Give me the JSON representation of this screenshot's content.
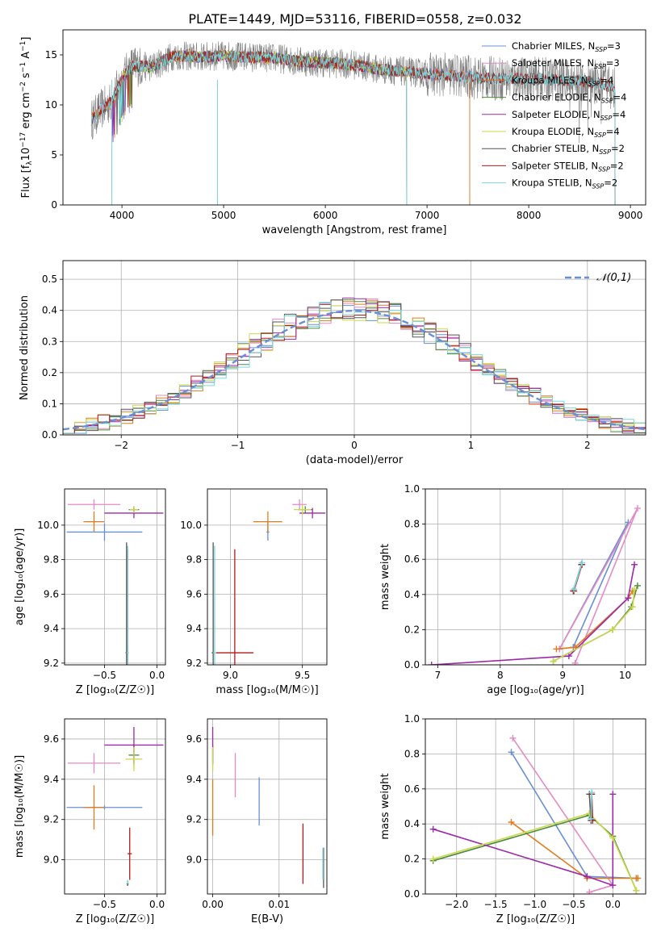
{
  "figure": {
    "title": "PLATE=1449, MJD=53116, FIBERID=0558, z=0.032"
  },
  "colors": {
    "chabrier_miles": "#6a8fd4",
    "salpeter_miles": "#e58ac5",
    "kroupa_miles": "#e07b1b",
    "chabrier_elodie": "#4e8a3e",
    "salpeter_elodie": "#9c2aa8",
    "kroupa_elodie": "#c9d84a",
    "chabrier_stelib": "#555555",
    "salpeter_stelib": "#b01c1c",
    "kroupa_stelib": "#7ad8de"
  },
  "chart_data": [
    {
      "id": "spectrum",
      "type": "line",
      "title": "PLATE=1449, MJD=53116, FIBERID=0558, z=0.032",
      "xlabel": "wavelength [Angstrom, rest frame]",
      "ylabel_parts": [
        "Flux [f",
        "λ",
        "10",
        "−17",
        " erg cm",
        "−2",
        " s",
        "−1",
        " A",
        "−1",
        "]"
      ],
      "xlim": [
        3420,
        9150
      ],
      "ylim": [
        0,
        17.5
      ],
      "xticks": [
        4000,
        5000,
        6000,
        7000,
        8000,
        9000
      ],
      "yticks": [
        0,
        5,
        10,
        15
      ],
      "observed_color": "#808080",
      "continuum_knots": [
        [
          3700,
          8.5
        ],
        [
          3800,
          9.6
        ],
        [
          3900,
          10.3
        ],
        [
          4000,
          12.6
        ],
        [
          4100,
          13.9
        ],
        [
          4300,
          13.8
        ],
        [
          4500,
          14.9
        ],
        [
          4800,
          14.8
        ],
        [
          5000,
          14.9
        ],
        [
          5200,
          14.8
        ],
        [
          5500,
          14.7
        ],
        [
          5800,
          14.3
        ],
        [
          6000,
          14.2
        ],
        [
          6300,
          14.0
        ],
        [
          6500,
          13.6
        ],
        [
          6800,
          13.3
        ],
        [
          7000,
          13.1
        ],
        [
          7300,
          12.9
        ],
        [
          7500,
          12.7
        ],
        [
          7800,
          12.6
        ],
        [
          8000,
          12.6
        ],
        [
          8300,
          12.5
        ],
        [
          8500,
          12.4
        ],
        [
          8700,
          12.2
        ],
        [
          8850,
          11.6
        ]
      ],
      "model_ranges": {
        "Chabrier MILES": [
          3700,
          7420
        ],
        "Salpeter MILES": [
          3700,
          7420
        ],
        "Kroupa MILES": [
          3700,
          7420
        ],
        "Chabrier ELODIE": [
          3900,
          6800
        ],
        "Salpeter ELODIE": [
          3900,
          6800
        ],
        "Kroupa ELODIE": [
          3900,
          6800
        ],
        "Chabrier STELIB": [
          3700,
          8850
        ],
        "Salpeter STELIB": [
          3700,
          8850
        ],
        "Kroupa STELIB": [
          3700,
          8850
        ]
      },
      "series": [
        {
          "name": "Chabrier MILES",
          "nssp": "3",
          "color": "#6a8fd4"
        },
        {
          "name": "Salpeter MILES",
          "nssp": "3",
          "color": "#e58ac5"
        },
        {
          "name": "Kroupa MILES",
          "nssp": "4",
          "color": "#e07b1b"
        },
        {
          "name": "Chabrier ELODIE",
          "nssp": "4",
          "color": "#4e8a3e"
        },
        {
          "name": "Salpeter ELODIE",
          "nssp": "4",
          "color": "#9c2aa8"
        },
        {
          "name": "Kroupa ELODIE",
          "nssp": "4",
          "color": "#c9d84a"
        },
        {
          "name": "Chabrier STELIB",
          "nssp": "2",
          "color": "#555555"
        },
        {
          "name": "Salpeter STELIB",
          "nssp": "2",
          "color": "#b01c1c"
        },
        {
          "name": "Kroupa STELIB",
          "nssp": "2",
          "color": "#7ad8de"
        }
      ],
      "legend_position": "top-right",
      "grid": false
    },
    {
      "id": "residuals",
      "type": "histogram",
      "xlabel": "(data-model)/error",
      "ylabel": "Normed distribution",
      "xlim": [
        -2.5,
        2.5
      ],
      "ylim": [
        0,
        0.56
      ],
      "xticks": [
        -2,
        -1,
        0,
        1,
        2
      ],
      "yticks": [
        0,
        0.1,
        0.2,
        0.3,
        0.4,
        0.5
      ],
      "bin_edges_range": [
        -2.5,
        2.5
      ],
      "bin_width": 0.1,
      "gaussian": {
        "label": "𝒩(0,1)",
        "color": "#6a8fd4",
        "mean": 0,
        "sigma": 1
      },
      "legend_position": "top-right",
      "grid": true,
      "series": [
        {
          "name": "Chabrier MILES",
          "color": "#6a8fd4",
          "offset": 0.01
        },
        {
          "name": "Salpeter MILES",
          "color": "#e58ac5",
          "offset": -0.02
        },
        {
          "name": "Kroupa MILES",
          "color": "#e07b1b",
          "offset": 0.0
        },
        {
          "name": "Chabrier ELODIE",
          "color": "#4e8a3e",
          "offset": 0.015
        },
        {
          "name": "Salpeter ELODIE",
          "color": "#9c2aa8",
          "offset": 0.03
        },
        {
          "name": "Kroupa ELODIE",
          "color": "#c9d84a",
          "offset": -0.01
        },
        {
          "name": "Chabrier STELIB",
          "color": "#555555",
          "offset": 0.005
        },
        {
          "name": "Salpeter STELIB",
          "color": "#b01c1c",
          "offset": -0.015
        },
        {
          "name": "Kroupa STELIB",
          "color": "#7ad8de",
          "offset": 0.02
        }
      ]
    },
    {
      "id": "age_vs_Z",
      "type": "errorbar",
      "xlabel": "Z [log₁₀(Z/Z☉)]",
      "ylabel": "age  [log₁₀(age/yr)]",
      "xlim": [
        -0.88,
        0.08
      ],
      "ylim": [
        9.19,
        10.21
      ],
      "xticks": [
        -0.5,
        0.0
      ],
      "yticks": [
        9.2,
        9.4,
        9.6,
        9.8,
        10.0
      ],
      "grid": true,
      "points": [
        {
          "color": "#6a8fd4",
          "x": -0.5,
          "y": 9.96,
          "xerr": 0.36,
          "yerr": 0.05
        },
        {
          "color": "#e58ac5",
          "x": -0.6,
          "y": 10.12,
          "xerr": 0.25,
          "yerr": 0.03
        },
        {
          "color": "#e07b1b",
          "x": -0.6,
          "y": 10.02,
          "xerr": 0.1,
          "yerr": 0.06
        },
        {
          "color": "#4e8a3e",
          "x": -0.22,
          "y": 10.09,
          "xerr": 0.05,
          "yerr": 0.02
        },
        {
          "color": "#9c2aa8",
          "x": -0.22,
          "y": 10.07,
          "xerr": 0.28,
          "yerr": 0.03
        },
        {
          "color": "#c9d84a",
          "x": -0.22,
          "y": 10.09,
          "xerr": 0.04,
          "yerr": 0.02
        },
        {
          "color": "#555555",
          "x": -0.29,
          "y": 9.26,
          "xerr": 0.01,
          "yerr": 0.64
        },
        {
          "color": "#b01c1c",
          "x": -0.28,
          "y": 9.26,
          "xerr": 0.01,
          "yerr": 0.6
        },
        {
          "color": "#7ad8de",
          "x": -0.28,
          "y": 9.26,
          "xerr": 0.01,
          "yerr": 0.62
        }
      ]
    },
    {
      "id": "age_vs_mass",
      "type": "errorbar",
      "xlabel": "mass [log₁₀(M/M☉)]",
      "ylabel": "",
      "xlim": [
        8.84,
        9.67
      ],
      "ylim": [
        9.19,
        10.21
      ],
      "xticks": [
        9.0,
        9.5
      ],
      "yticks": [
        9.2,
        9.4,
        9.6,
        9.8,
        10.0
      ],
      "grid": true,
      "points": [
        {
          "color": "#6a8fd4",
          "x": 9.26,
          "y": 9.96,
          "xerr": 0.01,
          "yerr": 0.05
        },
        {
          "color": "#e58ac5",
          "x": 9.48,
          "y": 10.12,
          "xerr": 0.05,
          "yerr": 0.03
        },
        {
          "color": "#e07b1b",
          "x": 9.26,
          "y": 10.02,
          "xerr": 0.1,
          "yerr": 0.06
        },
        {
          "color": "#4e8a3e",
          "x": 9.52,
          "y": 10.09,
          "xerr": 0.05,
          "yerr": 0.02
        },
        {
          "color": "#9c2aa8",
          "x": 9.57,
          "y": 10.07,
          "xerr": 0.09,
          "yerr": 0.03
        },
        {
          "color": "#c9d84a",
          "x": 9.5,
          "y": 10.09,
          "xerr": 0.06,
          "yerr": 0.03
        },
        {
          "color": "#555555",
          "x": 8.88,
          "y": 9.26,
          "xerr": 0.01,
          "yerr": 0.64
        },
        {
          "color": "#b01c1c",
          "x": 9.03,
          "y": 9.26,
          "xerr": 0.13,
          "yerr": 0.6
        },
        {
          "color": "#7ad8de",
          "x": 8.89,
          "y": 9.26,
          "xerr": 0.01,
          "yerr": 0.62
        }
      ]
    },
    {
      "id": "weight_vs_age",
      "type": "line",
      "xlabel": "age  [log₁₀(age/yr)]",
      "ylabel": "mass weight",
      "xlim": [
        6.8,
        10.33
      ],
      "ylim": [
        0,
        1.0
      ],
      "xticks": [
        7,
        8,
        9,
        10
      ],
      "yticks": [
        0.0,
        0.2,
        0.4,
        0.6,
        0.8,
        1.0
      ],
      "grid": true,
      "series": [
        {
          "name": "Chabrier MILES",
          "color": "#6a8fd4",
          "x": [
            9.17,
            10.05,
            8.95
          ],
          "y": [
            0.1,
            0.81,
            0.09
          ]
        },
        {
          "name": "Salpeter MILES",
          "color": "#e58ac5",
          "x": [
            9.2,
            10.2,
            8.95
          ],
          "y": [
            0.01,
            0.89,
            0.09
          ]
        },
        {
          "name": "Kroupa MILES",
          "color": "#e07b1b",
          "x": [
            8.9,
            9.2,
            10.05,
            10.12
          ],
          "y": [
            0.09,
            0.1,
            0.38,
            0.42
          ]
        },
        {
          "name": "Chabrier ELODIE",
          "color": "#4e8a3e",
          "x": [
            8.85,
            9.8,
            10.1,
            10.2
          ],
          "y": [
            0.02,
            0.2,
            0.33,
            0.45
          ]
        },
        {
          "name": "Salpeter ELODIE",
          "color": "#9c2aa8",
          "x": [
            6.9,
            9.1,
            10.05,
            10.15
          ],
          "y": [
            0.0,
            0.05,
            0.38,
            0.57
          ]
        },
        {
          "name": "Kroupa ELODIE",
          "color": "#c9d84a",
          "x": [
            8.85,
            9.8,
            10.12,
            10.15
          ],
          "y": [
            0.02,
            0.2,
            0.33,
            0.43
          ]
        },
        {
          "name": "Chabrier STELIB",
          "color": "#555555",
          "x": [
            9.17,
            9.3
          ],
          "y": [
            0.42,
            0.57
          ]
        },
        {
          "name": "Salpeter STELIB",
          "color": "#b01c1c",
          "x": [
            9.18,
            9.31
          ],
          "y": [
            0.42,
            0.57
          ]
        },
        {
          "name": "Kroupa STELIB",
          "color": "#7ad8de",
          "x": [
            9.18,
            9.31
          ],
          "y": [
            0.43,
            0.58
          ]
        }
      ]
    },
    {
      "id": "mass_vs_Z",
      "type": "errorbar",
      "xlabel": "Z [log₁₀(Z/Z☉)]",
      "ylabel": "mass [log₁₀(M/M☉)]",
      "xlim": [
        -0.88,
        0.08
      ],
      "ylim": [
        8.83,
        9.7
      ],
      "xticks": [
        -0.5,
        0.0
      ],
      "yticks": [
        9.0,
        9.2,
        9.4,
        9.6
      ],
      "grid": true,
      "points": [
        {
          "color": "#6a8fd4",
          "x": -0.5,
          "y": 9.26,
          "xerr": 0.36,
          "yerr": 0.01
        },
        {
          "color": "#e58ac5",
          "x": -0.6,
          "y": 9.48,
          "xerr": 0.25,
          "yerr": 0.05
        },
        {
          "color": "#e07b1b",
          "x": -0.6,
          "y": 9.26,
          "xerr": 0.1,
          "yerr": 0.11
        },
        {
          "color": "#4e8a3e",
          "x": -0.22,
          "y": 9.52,
          "xerr": 0.05,
          "yerr": 0.05
        },
        {
          "color": "#9c2aa8",
          "x": -0.22,
          "y": 9.57,
          "xerr": 0.28,
          "yerr": 0.09
        },
        {
          "color": "#c9d84a",
          "x": -0.22,
          "y": 9.5,
          "xerr": 0.08,
          "yerr": 0.06
        },
        {
          "color": "#555555",
          "x": -0.28,
          "y": 8.88,
          "xerr": 0.01,
          "yerr": 0.01
        },
        {
          "color": "#b01c1c",
          "x": -0.26,
          "y": 9.03,
          "xerr": 0.02,
          "yerr": 0.13
        },
        {
          "color": "#7ad8de",
          "x": -0.28,
          "y": 8.89,
          "xerr": 0.01,
          "yerr": 0.01
        }
      ]
    },
    {
      "id": "mass_vs_ebv",
      "type": "errorbar",
      "xlabel": "E(B-V)",
      "ylabel": "",
      "xlim": [
        -0.0008,
        0.0172
      ],
      "ylim": [
        8.83,
        9.7
      ],
      "xticks": [
        0.0,
        0.01
      ],
      "yticks": [
        9.0,
        9.2,
        9.4,
        9.6
      ],
      "grid": true,
      "points": [
        {
          "color": "#6a8fd4",
          "x": 0.007,
          "y": 9.29,
          "xerr": 0.0,
          "yerr": 0.12
        },
        {
          "color": "#e58ac5",
          "x": 0.0034,
          "y": 9.42,
          "xerr": 0.0,
          "yerr": 0.11
        },
        {
          "color": "#e07b1b",
          "x": 0.0,
          "y": 9.26,
          "xerr": 0.0,
          "yerr": 0.14
        },
        {
          "color": "#4e8a3e",
          "x": 0.0,
          "y": 9.52,
          "xerr": 0.0,
          "yerr": 0.05
        },
        {
          "color": "#9c2aa8",
          "x": 0.0,
          "y": 9.57,
          "xerr": 0.0,
          "yerr": 0.09
        },
        {
          "color": "#c9d84a",
          "x": 0.0,
          "y": 9.5,
          "xerr": 0.0,
          "yerr": 0.06
        },
        {
          "color": "#555555",
          "x": 0.0167,
          "y": 8.96,
          "xerr": 0.0,
          "yerr": 0.1
        },
        {
          "color": "#b01c1c",
          "x": 0.0136,
          "y": 9.03,
          "xerr": 0.0,
          "yerr": 0.15
        },
        {
          "color": "#7ad8de",
          "x": 0.0166,
          "y": 8.98,
          "xerr": 0.0,
          "yerr": 0.08
        }
      ]
    },
    {
      "id": "weight_vs_Z",
      "type": "line",
      "xlabel": "Z [log₁₀(Z/Z☉)]",
      "ylabel": "mass weight",
      "xlim": [
        -2.4,
        0.42
      ],
      "ylim": [
        0,
        1.0
      ],
      "xticks": [
        -2.0,
        -1.5,
        -1.0,
        -0.5,
        0.0
      ],
      "yticks": [
        0.0,
        0.2,
        0.4,
        0.6,
        0.8,
        1.0
      ],
      "grid": true,
      "series": [
        {
          "name": "Chabrier MILES",
          "color": "#6a8fd4",
          "x": [
            -1.3,
            -0.33,
            0.3
          ],
          "y": [
            0.81,
            0.1,
            0.09
          ]
        },
        {
          "name": "Salpeter MILES",
          "color": "#e58ac5",
          "x": [
            -1.28,
            -0.0,
            -0.3
          ],
          "y": [
            0.89,
            0.05,
            0.01
          ]
        },
        {
          "name": "Kroupa MILES",
          "color": "#e07b1b",
          "x": [
            -1.3,
            -0.33,
            0.3,
            0.32
          ],
          "y": [
            0.41,
            0.09,
            0.09,
            0.09
          ]
        },
        {
          "name": "Chabrier ELODIE",
          "color": "#4e8a3e",
          "x": [
            -2.3,
            -0.3,
            0.0,
            0.3
          ],
          "y": [
            0.19,
            0.45,
            0.33,
            0.02
          ]
        },
        {
          "name": "Salpeter ELODIE",
          "color": "#9c2aa8",
          "x": [
            -2.3,
            -0.33,
            0.0,
            0.0
          ],
          "y": [
            0.37,
            0.1,
            0.05,
            0.57
          ]
        },
        {
          "name": "Kroupa ELODIE",
          "color": "#c9d84a",
          "x": [
            -2.3,
            -0.3,
            0.0,
            0.3
          ],
          "y": [
            0.2,
            0.46,
            0.32,
            0.02
          ]
        },
        {
          "name": "Chabrier STELIB",
          "color": "#555555",
          "x": [
            -0.3,
            -0.28
          ],
          "y": [
            0.57,
            0.42
          ]
        },
        {
          "name": "Salpeter STELIB",
          "color": "#b01c1c",
          "x": [
            -0.27,
            -0.26
          ],
          "y": [
            0.57,
            0.42
          ]
        },
        {
          "name": "Kroupa STELIB",
          "color": "#7ad8de",
          "x": [
            -0.27,
            -0.28
          ],
          "y": [
            0.58,
            0.43
          ]
        }
      ]
    }
  ]
}
